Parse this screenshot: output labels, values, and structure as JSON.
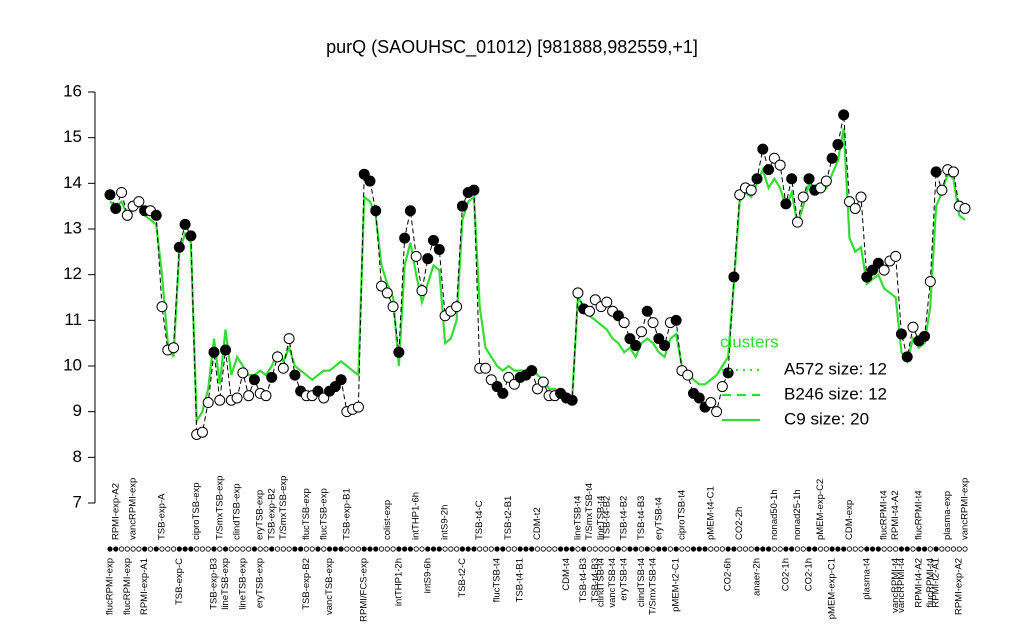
{
  "chart_data": {
    "type": "line",
    "title": "purQ (SAOUHSC_01012) [981888,982559,+1]",
    "ylim": [
      7,
      16
    ],
    "yticks": [
      7,
      8,
      9,
      10,
      11,
      12,
      13,
      14,
      15,
      16
    ],
    "series": [
      {
        "color": "#000000",
        "values": [
          13.75,
          13.45,
          13.8,
          13.3,
          13.5,
          13.6,
          13.4,
          13.4,
          13.3,
          11.3,
          10.35,
          10.4,
          12.6,
          13.1,
          12.85,
          8.5,
          8.55,
          9.2,
          10.3,
          9.25,
          10.35,
          9.25,
          9.3,
          9.85,
          9.35,
          9.7,
          9.4,
          9.35,
          9.75,
          10.2,
          9.95,
          10.6,
          9.8,
          9.45,
          9.35,
          9.35,
          9.45,
          9.3,
          9.45,
          9.55,
          9.7,
          9.0,
          9.05,
          9.1,
          14.2,
          14.05,
          13.4,
          11.75,
          11.6,
          11.3,
          10.3,
          12.8,
          13.4,
          12.4,
          11.65,
          12.35,
          12.75,
          12.55,
          11.1,
          11.2,
          11.3,
          13.5,
          13.8,
          13.85,
          9.95,
          9.95,
          9.7,
          9.55,
          9.4,
          9.75,
          9.6,
          9.75,
          9.8,
          9.9,
          9.5,
          9.65,
          9.35,
          9.35,
          9.4,
          9.3,
          9.25,
          11.6,
          11.25,
          11.2,
          11.45,
          11.3,
          11.4,
          11.2,
          11.1,
          10.95,
          10.6,
          10.45,
          10.75,
          11.2,
          10.95,
          10.6,
          10.45,
          10.95,
          11.0,
          9.9,
          9.8,
          9.4,
          9.3,
          9.1,
          9.2,
          9.0,
          9.55,
          9.85,
          11.95,
          13.75,
          13.9,
          13.85,
          14.1,
          14.75,
          14.3,
          14.55,
          14.4,
          13.55,
          14.1,
          13.15,
          13.7,
          14.1,
          13.85,
          13.9,
          14.05,
          14.55,
          14.85,
          15.5,
          13.6,
          13.45,
          13.7,
          11.95,
          12.1,
          12.25,
          12.1,
          12.3,
          12.4,
          10.7,
          10.2,
          10.85,
          10.55,
          10.65,
          11.85,
          14.25,
          13.85,
          14.3,
          14.25,
          13.5,
          13.45
        ],
        "marker_fills": [
          "#000",
          "#000",
          "#fff",
          "#fff",
          "#fff",
          "#fff",
          "#000",
          "#fff",
          "#000",
          "#fff",
          "#fff",
          "#fff",
          "#000",
          "#000",
          "#000",
          "#fff",
          "#fff",
          "#fff",
          "#000",
          "#fff",
          "#000",
          "#fff",
          "#fff",
          "#fff",
          "#fff",
          "#000",
          "#fff",
          "#fff",
          "#000",
          "#fff",
          "#fff",
          "#fff",
          "#000",
          "#000",
          "#fff",
          "#fff",
          "#000",
          "#fff",
          "#000",
          "#000",
          "#000",
          "#fff",
          "#fff",
          "#fff",
          "#000",
          "#000",
          "#000",
          "#fff",
          "#fff",
          "#fff",
          "#000",
          "#000",
          "#000",
          "#fff",
          "#fff",
          "#000",
          "#000",
          "#000",
          "#fff",
          "#fff",
          "#fff",
          "#000",
          "#000",
          "#000",
          "#fff",
          "#fff",
          "#fff",
          "#000",
          "#000",
          "#fff",
          "#fff",
          "#000",
          "#000",
          "#000",
          "#fff",
          "#fff",
          "#fff",
          "#fff",
          "#000",
          "#000",
          "#000",
          "#fff",
          "#000",
          "#fff",
          "#fff",
          "#fff",
          "#fff",
          "#fff",
          "#000",
          "#fff",
          "#000",
          "#000",
          "#fff",
          "#000",
          "#fff",
          "#000",
          "#000",
          "#fff",
          "#000",
          "#fff",
          "#fff",
          "#000",
          "#000",
          "#000",
          "#fff",
          "#fff",
          "#fff",
          "#000",
          "#000",
          "#fff",
          "#fff",
          "#fff",
          "#000",
          "#000",
          "#000",
          "#fff",
          "#fff",
          "#000",
          "#000",
          "#fff",
          "#fff",
          "#000",
          "#000",
          "#fff",
          "#fff",
          "#000",
          "#000",
          "#000",
          "#fff",
          "#fff",
          "#fff",
          "#000",
          "#000",
          "#000",
          "#fff",
          "#fff",
          "#fff",
          "#000",
          "#000",
          "#fff",
          "#000",
          "#000",
          "#fff",
          "#000",
          "#fff",
          "#fff",
          "#fff",
          "#fff",
          "#fff"
        ]
      },
      {
        "name": "C9 size: 20",
        "color": "#33dd33",
        "dash": "solid",
        "values": [
          13.6,
          13.5,
          13.6,
          13.3,
          13.4,
          13.5,
          13.3,
          13.2,
          13.1,
          12.0,
          10.5,
          10.2,
          12.5,
          12.9,
          12.7,
          8.8,
          9.0,
          9.5,
          10.6,
          9.6,
          10.8,
          9.8,
          10.2,
          10.0,
          9.8,
          9.8,
          9.9,
          9.8,
          10.0,
          10.3,
          10.1,
          10.4,
          10.0,
          9.9,
          9.8,
          9.7,
          9.8,
          9.9,
          9.9,
          10.0,
          10.1,
          10.0,
          9.9,
          9.8,
          13.7,
          13.6,
          13.3,
          12.2,
          11.8,
          11.5,
          10.0,
          12.2,
          12.7,
          12.0,
          11.4,
          11.8,
          12.2,
          12.1,
          10.5,
          10.6,
          11.0,
          13.2,
          13.6,
          13.7,
          11.3,
          10.4,
          10.2,
          10.0,
          9.9,
          10.0,
          9.9,
          9.9,
          9.9,
          10.0,
          9.8,
          9.7,
          9.5,
          9.5,
          9.4,
          9.4,
          9.3,
          11.5,
          11.3,
          11.1,
          11.0,
          10.9,
          10.8,
          10.6,
          10.5,
          10.3,
          10.4,
          10.2,
          10.5,
          10.6,
          10.5,
          10.3,
          10.2,
          10.6,
          10.7,
          10.0,
          9.9,
          9.7,
          9.6,
          9.6,
          9.7,
          9.8,
          10.0,
          10.2,
          11.8,
          13.6,
          13.8,
          13.7,
          14.0,
          14.3,
          13.9,
          14.1,
          13.9,
          13.5,
          13.8,
          13.1,
          13.5,
          14.0,
          13.8,
          13.8,
          13.9,
          14.2,
          14.5,
          15.2,
          12.8,
          12.5,
          12.6,
          11.8,
          11.9,
          12.0,
          11.7,
          11.6,
          11.5,
          10.3,
          10.1,
          10.6,
          10.4,
          10.5,
          11.3,
          13.5,
          13.8,
          14.2,
          14.1,
          13.3,
          13.2
        ]
      }
    ],
    "legend": {
      "title": "clusters",
      "entries": [
        {
          "name": "A572 size: 12",
          "dash": "dotted"
        },
        {
          "name": "B246 size: 12",
          "dash": "dashed"
        }
      ]
    },
    "xticks_top": [
      {
        "value": 1,
        "label": "RPMI-exp-A2"
      },
      {
        "value": 4,
        "label": "vancRPMI-exp"
      },
      {
        "value": 9,
        "label": "TSB-exp-A"
      },
      {
        "value": 15,
        "label": "ciproTSB-exp"
      },
      {
        "value": 19,
        "label": "T/SmxTSB-exp"
      },
      {
        "value": 22,
        "label": "clindTSB-exp"
      },
      {
        "value": 26,
        "label": "eryTSB-exp"
      },
      {
        "value": 28,
        "label": "TSB-exp-B2"
      },
      {
        "value": 30,
        "label": "T/SmxTSB-exp"
      },
      {
        "value": 34,
        "label": "flucTSB-exp"
      },
      {
        "value": 37,
        "label": "flucTSB-exp"
      },
      {
        "value": 41,
        "label": "TSB-exp-B1"
      },
      {
        "value": 48,
        "label": "colist-exp"
      },
      {
        "value": 53,
        "label": "intTHP1-6h"
      },
      {
        "value": 58,
        "label": "intS9-2h"
      },
      {
        "value": 64,
        "label": "TSB-t4-C"
      },
      {
        "value": 69,
        "label": "TSB-t2-B1"
      },
      {
        "value": 74,
        "label": "CDM-t2"
      },
      {
        "value": 81,
        "label": "lineTSB-t4"
      },
      {
        "value": 83,
        "label": "T/SmxTSB-t4"
      },
      {
        "value": 85,
        "label": "lineTSB-t4"
      },
      {
        "value": 86,
        "label": "TSB-t4-B2"
      },
      {
        "value": 89,
        "label": "TSB-t4-B2"
      },
      {
        "value": 92,
        "label": "TSB-t4-B3"
      },
      {
        "value": 95,
        "label": "eryTSB-t4"
      },
      {
        "value": 99,
        "label": "ciproTSB-t4"
      },
      {
        "value": 104,
        "label": "pMEM-t4-C1"
      },
      {
        "value": 109,
        "label": "CO2-2h"
      },
      {
        "value": 115,
        "label": "nonad50-1h"
      },
      {
        "value": 119,
        "label": "nonad25-1h"
      },
      {
        "value": 123,
        "label": "pMEM-exp-C2"
      },
      {
        "value": 128,
        "label": "CDM-exp"
      },
      {
        "value": 134,
        "label": "flucRPMI-t4"
      },
      {
        "value": 136,
        "label": "RPMI-t4-A2"
      },
      {
        "value": 140,
        "label": "flucRPMI-t4"
      },
      {
        "value": 145,
        "label": "plasma-exp"
      },
      {
        "value": 148,
        "label": "vancRPMI-exp"
      }
    ],
    "xticks": [
      {
        "value": 0,
        "label": "flucRPMI-exp"
      },
      {
        "value": 3,
        "label": "flucRPMI-exp"
      },
      {
        "value": 6,
        "label": "RPMI-exp-A1"
      },
      {
        "value": 12,
        "label": "TSB-exp-C"
      },
      {
        "value": 18,
        "label": "TSB-exp-B3"
      },
      {
        "value": 20,
        "label": "lineTSB-exp"
      },
      {
        "value": 23,
        "label": "lineTSB-exp"
      },
      {
        "value": 26,
        "label": "eryTSB-exp"
      },
      {
        "value": 34,
        "label": "TSB-exp-B2"
      },
      {
        "value": 38,
        "label": "vancTSB-exp"
      },
      {
        "value": 44,
        "label": "RPMI/FCS-exp"
      },
      {
        "value": 50,
        "label": "intTHP1-2h"
      },
      {
        "value": 55,
        "label": "intS9-6h"
      },
      {
        "value": 61,
        "label": "TSB-t2-C"
      },
      {
        "value": 67,
        "label": "flucTSB-t4"
      },
      {
        "value": 71,
        "label": "TSB-t4-B1"
      },
      {
        "value": 79,
        "label": "CDM-t4"
      },
      {
        "value": 82,
        "label": "TSB-t4-B3"
      },
      {
        "value": 84,
        "label": "TSB-t4-B3"
      },
      {
        "value": 85,
        "label": "clindTSB-t4"
      },
      {
        "value": 87,
        "label": "vancTSB-t4"
      },
      {
        "value": 89,
        "label": "eryTSB-t4"
      },
      {
        "value": 92,
        "label": "clindTSB-t4"
      },
      {
        "value": 94,
        "label": "T/SmxTSB-t4"
      },
      {
        "value": 98,
        "label": "pMEM-t2-C1"
      },
      {
        "value": 107,
        "label": "CO2-6h"
      },
      {
        "value": 112,
        "label": "anaer-2h"
      },
      {
        "value": 117,
        "label": "CO2-1h"
      },
      {
        "value": 121,
        "label": "CO2-1h"
      },
      {
        "value": 125,
        "label": "pMEM-exp-C1"
      },
      {
        "value": 131,
        "label": "plasma-t4"
      },
      {
        "value": 136,
        "label": "vancRPMI-t4"
      },
      {
        "value": 137,
        "label": "vancRPMI-t4"
      },
      {
        "value": 140,
        "label": "RPMI-t4-A2"
      },
      {
        "value": 142,
        "label": "flucRPMI-t4"
      },
      {
        "value": 143,
        "label": "RPMI-t2-A1"
      },
      {
        "value": 147,
        "label": "RPMI-exp-A2"
      }
    ]
  }
}
